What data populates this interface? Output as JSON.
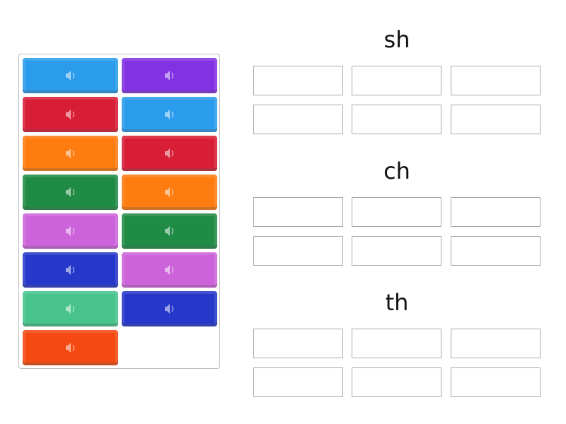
{
  "tiles": [
    {
      "column": "left",
      "color": "#2a9ceb",
      "icon": "speaker-icon"
    },
    {
      "column": "left",
      "color": "#d81e36",
      "icon": "speaker-icon"
    },
    {
      "column": "left",
      "color": "#fe7c10",
      "icon": "speaker-icon"
    },
    {
      "column": "left",
      "color": "#1f8b45",
      "icon": "speaker-icon"
    },
    {
      "column": "left",
      "color": "#cd63da",
      "icon": "speaker-icon"
    },
    {
      "column": "left",
      "color": "#2638c9",
      "icon": "speaker-icon"
    },
    {
      "column": "left",
      "color": "#47c38b",
      "icon": "speaker-icon"
    },
    {
      "column": "left",
      "color": "#f44a12",
      "icon": "speaker-icon"
    },
    {
      "column": "right",
      "color": "#8232e3",
      "icon": "speaker-icon"
    },
    {
      "column": "right",
      "color": "#2a9ceb",
      "icon": "speaker-icon"
    },
    {
      "column": "right",
      "color": "#d81e36",
      "icon": "speaker-icon"
    },
    {
      "column": "right",
      "color": "#fe7c10",
      "icon": "speaker-icon"
    },
    {
      "column": "right",
      "color": "#1f8b45",
      "icon": "speaker-icon"
    },
    {
      "column": "right",
      "color": "#cd63da",
      "icon": "speaker-icon"
    },
    {
      "column": "right",
      "color": "#2638c9",
      "icon": "speaker-icon"
    }
  ],
  "groups": [
    {
      "title": "sh",
      "slots": 6
    },
    {
      "title": "ch",
      "slots": 6
    },
    {
      "title": "th",
      "slots": 6
    }
  ]
}
